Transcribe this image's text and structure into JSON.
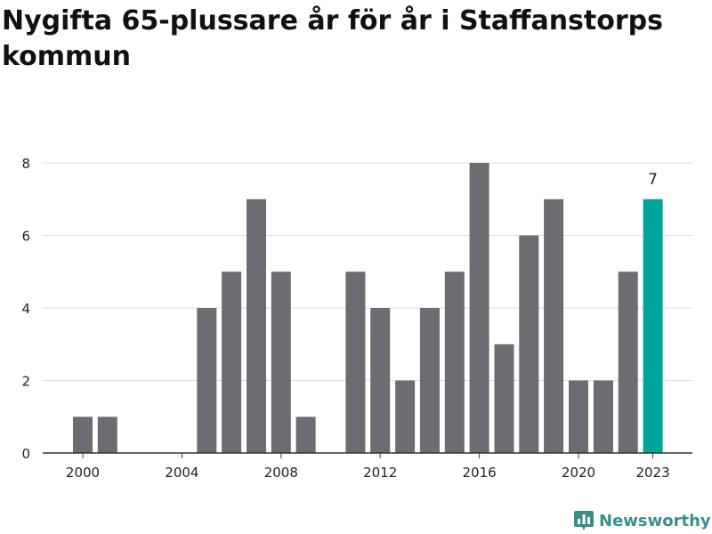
{
  "chart_data": {
    "type": "bar",
    "title": "Nygifta 65-plussare år för år i Staffanstorps kommun",
    "years": [
      2000,
      2001,
      2002,
      2003,
      2004,
      2005,
      2006,
      2007,
      2008,
      2009,
      2010,
      2011,
      2012,
      2013,
      2014,
      2015,
      2016,
      2017,
      2018,
      2019,
      2020,
      2021,
      2022,
      2023
    ],
    "values": [
      1,
      1,
      0,
      0,
      0,
      4,
      5,
      7,
      5,
      1,
      0,
      5,
      4,
      2,
      4,
      5,
      8,
      3,
      6,
      7,
      2,
      2,
      5,
      7
    ],
    "x_tick_labels": [
      "2000",
      "2004",
      "2008",
      "2012",
      "2016",
      "2020",
      "2023"
    ],
    "y_ticks": [
      0,
      2,
      4,
      6,
      8
    ],
    "ylim": [
      0,
      8
    ],
    "highlight": {
      "year": 2023,
      "label": "7"
    },
    "grid": true,
    "colors": {
      "bar": "#6d6c72",
      "highlight": "#00a59a",
      "grid": "#dddddd",
      "axis": "#333333",
      "text": "#222222"
    }
  },
  "branding": {
    "name": "Newsworthy",
    "icon": "bar-chart-icon",
    "color": "#3a8f8a"
  }
}
